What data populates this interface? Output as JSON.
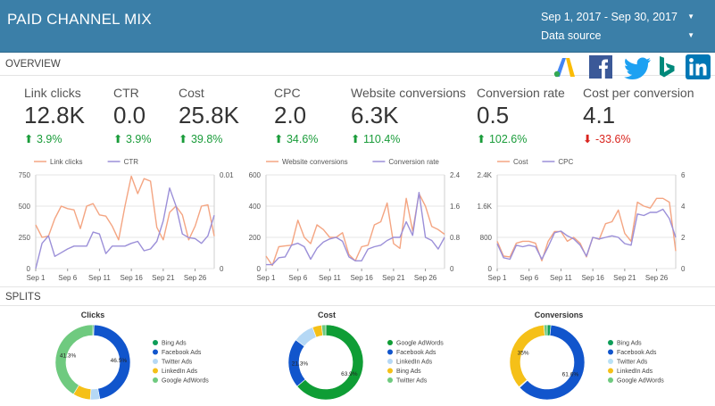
{
  "header": {
    "title": "PAID CHANNEL MIX",
    "date_range": "Sep 1, 2017 - Sep 30, 2017",
    "data_source": "Data source"
  },
  "sections": {
    "overview": "OVERVIEW",
    "splits": "SPLITS"
  },
  "logos": [
    "adwords-logo",
    "facebook-logo",
    "twitter-logo",
    "bing-logo",
    "linkedin-logo"
  ],
  "kpis": [
    {
      "label": "Link clicks",
      "value": "12.8K",
      "change": "3.9%",
      "dir": "up"
    },
    {
      "label": "CTR",
      "value": "0.0",
      "change": "3.9%",
      "dir": "up"
    },
    {
      "label": "Cost",
      "value": "25.8K",
      "change": "39.8%",
      "dir": "up"
    },
    {
      "label": "CPC",
      "value": "2.0",
      "change": "34.6%",
      "dir": "up"
    },
    {
      "label": "Website conversions",
      "value": "6.3K",
      "change": "110.4%",
      "dir": "up"
    },
    {
      "label": "Conversion rate",
      "value": "0.5",
      "change": "102.6%",
      "dir": "up"
    },
    {
      "label": "Cost per conversion",
      "value": "4.1",
      "change": "-33.6%",
      "dir": "down"
    }
  ],
  "colors": {
    "series_primary": "#f4a582",
    "series_secondary": "#9b8fd8",
    "up": "#1a9c3a",
    "down": "#d9241e",
    "bing": "#0e9d58",
    "facebook": "#1155cc",
    "twitter": "#b5d8f5",
    "linkedin": "#f5c018",
    "adwords": "#6fca7f",
    "adwords_cost": "#0f9d35",
    "twitter_conv": "#b9e1f5"
  },
  "chart_data": [
    {
      "type": "line",
      "x_ticks": [
        "Sep 1",
        "Sep 6",
        "Sep 11",
        "Sep 16",
        "Sep 21",
        "Sep 26"
      ],
      "left_axis": {
        "ticks": [
          "0",
          "250",
          "500",
          "750"
        ],
        "ylim": [
          0,
          750
        ]
      },
      "right_axis": {
        "ticks": [
          "0",
          "0.01"
        ],
        "ylim": [
          0,
          0.01
        ]
      },
      "series": [
        {
          "name": "Link clicks",
          "axis": "left",
          "values": [
            350,
            250,
            260,
            400,
            500,
            480,
            470,
            320,
            500,
            520,
            430,
            420,
            340,
            230,
            500,
            740,
            600,
            720,
            700,
            330,
            230,
            450,
            500,
            430,
            230,
            340,
            500,
            510,
            260
          ]
        },
        {
          "name": "CTR",
          "axis": "right",
          "values": [
            0.0,
            0.0027,
            0.0035,
            0.0013,
            0.0017,
            0.0021,
            0.0024,
            0.0024,
            0.0024,
            0.0039,
            0.0037,
            0.0016,
            0.0024,
            0.0024,
            0.0024,
            0.0027,
            0.0029,
            0.0019,
            0.0021,
            0.0029,
            0.0051,
            0.0086,
            0.0067,
            0.0037,
            0.0033,
            0.0032,
            0.0027,
            0.0035,
            0.0057
          ]
        }
      ]
    },
    {
      "type": "line",
      "x_ticks": [
        "Sep 1",
        "Sep 6",
        "Sep 11",
        "Sep 16",
        "Sep 21",
        "Sep 26"
      ],
      "left_axis": {
        "ticks": [
          "0",
          "200",
          "400",
          "600"
        ],
        "ylim": [
          0,
          600
        ]
      },
      "right_axis": {
        "ticks": [
          "0",
          "0.8",
          "1.6",
          "2.4"
        ],
        "ylim": [
          0,
          2.4
        ]
      },
      "series": [
        {
          "name": "Website conversions",
          "axis": "left",
          "values": [
            80,
            20,
            140,
            145,
            150,
            310,
            200,
            160,
            280,
            250,
            200,
            200,
            230,
            90,
            50,
            140,
            150,
            280,
            300,
            420,
            160,
            130,
            450,
            240,
            480,
            400,
            270,
            250,
            220
          ]
        },
        {
          "name": "Conversion rate",
          "axis": "right",
          "values": [
            0.1,
            0.1,
            0.28,
            0.3,
            0.6,
            0.65,
            0.56,
            0.24,
            0.52,
            0.68,
            0.76,
            0.8,
            0.7,
            0.3,
            0.2,
            0.2,
            0.5,
            0.56,
            0.6,
            0.72,
            0.8,
            0.8,
            1.2,
            0.85,
            1.95,
            0.8,
            0.72,
            0.5,
            0.8
          ]
        }
      ]
    },
    {
      "type": "line",
      "x_ticks": [
        "Sep 1",
        "Sep 6",
        "Sep 11",
        "Sep 16",
        "Sep 21",
        "Sep 26"
      ],
      "left_axis": {
        "ticks": [
          "0",
          "800",
          "1.6K",
          "2.4K"
        ],
        "ylim": [
          0,
          2400
        ]
      },
      "right_axis": {
        "ticks": [
          "0",
          "2",
          "4",
          "6"
        ],
        "ylim": [
          0,
          6
        ]
      },
      "series": [
        {
          "name": "Cost",
          "axis": "left",
          "values": [
            700,
            320,
            300,
            650,
            700,
            700,
            650,
            200,
            700,
            950,
            950,
            700,
            800,
            650,
            300,
            800,
            750,
            1150,
            1200,
            1500,
            900,
            700,
            1700,
            1600,
            1550,
            1800,
            1800,
            1700,
            450
          ]
        },
        {
          "name": "CPC",
          "axis": "right",
          "values": [
            1.6,
            0.7,
            0.6,
            1.5,
            1.4,
            1.5,
            1.4,
            0.6,
            1.4,
            2.3,
            2.4,
            2.1,
            1.9,
            1.5,
            0.8,
            2.0,
            1.9,
            2.0,
            2.1,
            2.0,
            1.6,
            1.5,
            3.5,
            3.4,
            3.6,
            3.6,
            3.8,
            3.2,
            2.0
          ]
        }
      ]
    },
    {
      "type": "pie",
      "title": "Clicks",
      "slices": [
        {
          "label": "Bing Ads",
          "value": 0.5,
          "color": "#0e9d58"
        },
        {
          "label": "Facebook Ads",
          "value": 46.5,
          "color": "#1155cc",
          "shown": "46.5%"
        },
        {
          "label": "Twitter Ads",
          "value": 4.1,
          "color": "#b5d8f5"
        },
        {
          "label": "LinkedIn Ads",
          "value": 7.6,
          "color": "#f5c018"
        },
        {
          "label": "Google AdWords",
          "value": 41.3,
          "color": "#6fca7f",
          "shown": "41.3%"
        }
      ]
    },
    {
      "type": "pie",
      "title": "Cost",
      "slices": [
        {
          "label": "Google AdWords",
          "value": 63.9,
          "color": "#0f9d35",
          "shown": "63.9%"
        },
        {
          "label": "Facebook Ads",
          "value": 21.3,
          "color": "#1155cc",
          "shown": "21.3%"
        },
        {
          "label": "LinkedIn Ads",
          "value": 9.0,
          "color": "#b5d8f5"
        },
        {
          "label": "Bing Ads",
          "value": 4.0,
          "color": "#f5c018"
        },
        {
          "label": "Twitter Ads",
          "value": 1.8,
          "color": "#6fca7f"
        }
      ]
    },
    {
      "type": "pie",
      "title": "Conversions",
      "slices": [
        {
          "label": "Bing Ads",
          "value": 1.6,
          "color": "#0e9d58"
        },
        {
          "label": "Facebook Ads",
          "value": 61.6,
          "color": "#1155cc",
          "shown": "61.6%"
        },
        {
          "label": "Twitter Ads",
          "value": 0.4,
          "color": "#b9e1f5"
        },
        {
          "label": "LinkedIn Ads",
          "value": 35.0,
          "color": "#f5c018",
          "shown": "35%"
        },
        {
          "label": "Google AdWords",
          "value": 1.4,
          "color": "#6fca7f"
        }
      ]
    }
  ]
}
